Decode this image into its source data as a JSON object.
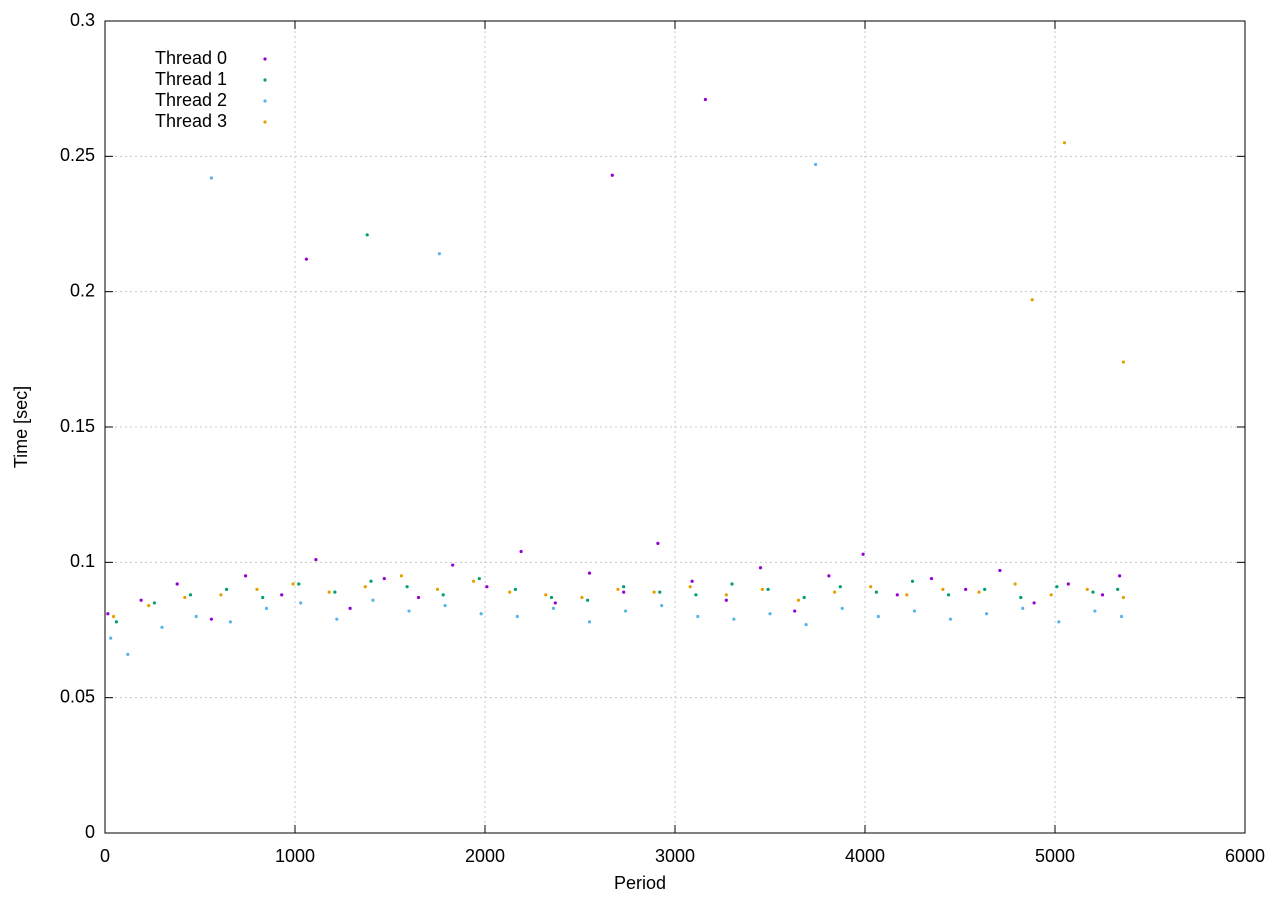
{
  "chart_data": {
    "type": "scatter",
    "xlabel": "Period",
    "ylabel": "Time [sec]",
    "xlim": [
      0,
      6000
    ],
    "ylim": [
      0,
      0.3
    ],
    "xticks": [
      0,
      1000,
      2000,
      3000,
      4000,
      5000,
      6000
    ],
    "yticks": [
      0,
      0.05,
      0.1,
      0.15,
      0.2,
      0.25,
      0.3
    ],
    "grid": true,
    "legend": "top-left",
    "series": [
      {
        "name": "Thread 0",
        "color": "#9400d3",
        "x": [
          15,
          190,
          380,
          560,
          740,
          930,
          1110,
          1290,
          1470,
          1650,
          1830,
          2010,
          2190,
          2370,
          2550,
          2730,
          2910,
          3090,
          3270,
          3450,
          3630,
          3810,
          3990,
          4170,
          4350,
          4530,
          4710,
          4890,
          5070,
          5250,
          5340,
          3160,
          1060,
          2670
        ],
        "y": [
          0.081,
          0.086,
          0.092,
          0.079,
          0.095,
          0.088,
          0.101,
          0.083,
          0.094,
          0.087,
          0.099,
          0.091,
          0.104,
          0.085,
          0.096,
          0.089,
          0.107,
          0.093,
          0.086,
          0.098,
          0.082,
          0.095,
          0.103,
          0.088,
          0.094,
          0.09,
          0.097,
          0.085,
          0.092,
          0.088,
          0.095,
          0.271,
          0.212,
          0.243
        ]
      },
      {
        "name": "Thread 1",
        "color": "#009e73",
        "x": [
          60,
          260,
          450,
          640,
          830,
          1020,
          1210,
          1400,
          1590,
          1780,
          1970,
          2160,
          2350,
          2540,
          2730,
          2920,
          3110,
          3300,
          3490,
          3680,
          3870,
          4060,
          4250,
          4440,
          4630,
          4820,
          5010,
          5200,
          5330,
          1380
        ],
        "y": [
          0.078,
          0.085,
          0.088,
          0.09,
          0.087,
          0.092,
          0.089,
          0.093,
          0.091,
          0.088,
          0.094,
          0.09,
          0.087,
          0.086,
          0.091,
          0.089,
          0.088,
          0.092,
          0.09,
          0.087,
          0.091,
          0.089,
          0.093,
          0.088,
          0.09,
          0.087,
          0.091,
          0.089,
          0.09,
          0.221
        ]
      },
      {
        "name": "Thread 2",
        "color": "#56b4e9",
        "x": [
          30,
          120,
          300,
          480,
          660,
          850,
          1030,
          1220,
          1410,
          1600,
          1790,
          1980,
          2170,
          2360,
          2550,
          2740,
          2930,
          3120,
          3310,
          3500,
          3690,
          3880,
          4070,
          4260,
          4450,
          4640,
          4830,
          5020,
          5210,
          5350,
          560,
          1760,
          3740
        ],
        "y": [
          0.072,
          0.066,
          0.076,
          0.08,
          0.078,
          0.083,
          0.085,
          0.079,
          0.086,
          0.082,
          0.084,
          0.081,
          0.08,
          0.083,
          0.078,
          0.082,
          0.084,
          0.08,
          0.079,
          0.081,
          0.077,
          0.083,
          0.08,
          0.082,
          0.079,
          0.081,
          0.083,
          0.078,
          0.082,
          0.08,
          0.242,
          0.214,
          0.247
        ]
      },
      {
        "name": "Thread 3",
        "color": "#e69f00",
        "x": [
          45,
          230,
          420,
          610,
          800,
          990,
          1180,
          1370,
          1560,
          1750,
          1940,
          2130,
          2320,
          2510,
          2700,
          2890,
          3080,
          3270,
          3460,
          3650,
          3840,
          4030,
          4220,
          4410,
          4600,
          4790,
          4980,
          5170,
          5360,
          4880,
          5050,
          5360
        ],
        "y": [
          0.08,
          0.084,
          0.087,
          0.088,
          0.09,
          0.092,
          0.089,
          0.091,
          0.095,
          0.09,
          0.093,
          0.089,
          0.088,
          0.087,
          0.09,
          0.089,
          0.091,
          0.088,
          0.09,
          0.086,
          0.089,
          0.091,
          0.088,
          0.09,
          0.089,
          0.092,
          0.088,
          0.09,
          0.087,
          0.197,
          0.255,
          0.174
        ]
      }
    ]
  }
}
